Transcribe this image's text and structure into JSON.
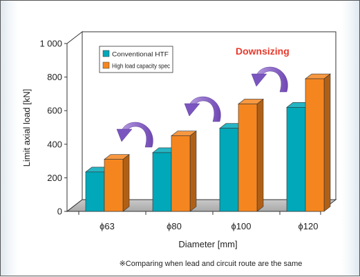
{
  "chart_data": {
    "type": "bar",
    "style": "3d",
    "categories": [
      "ϕ63",
      "ϕ80",
      "ϕ100",
      "ϕ120"
    ],
    "series": [
      {
        "name": "Conventional HTF",
        "values": [
          235,
          350,
          495,
          620
        ],
        "color": "#00a8b9"
      },
      {
        "name": "High load capacity spec",
        "values": [
          310,
          450,
          640,
          790
        ],
        "color": "#f5861f"
      }
    ],
    "xlabel": "Diameter [mm]",
    "ylabel": "Limit axial load [kN]",
    "ylim": [
      0,
      1000
    ],
    "yticks": [
      "0",
      "200",
      "400",
      "600",
      "800",
      "1 000"
    ],
    "grid": false,
    "legend_position": "top-left",
    "annotation": "Downsizing",
    "annotation_color": "#e8392c",
    "arrow_color": "#8860c4",
    "arrow_icon": "curved-arrow-left-icon",
    "note": "※Comparing when lead and circuit route are the same"
  }
}
